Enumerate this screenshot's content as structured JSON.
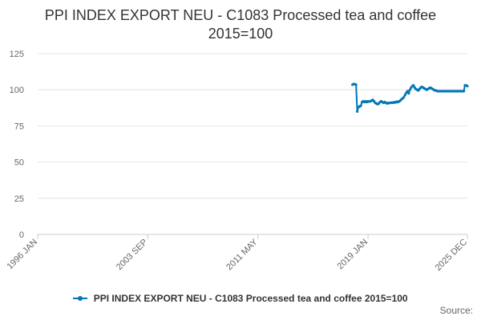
{
  "chart_data": {
    "type": "line",
    "title": "PPI INDEX EXPORT NEU - C1083 Processed tea and coffee",
    "subtitle": "2015=100",
    "xlabel": "",
    "ylabel": "",
    "ylim": [
      0,
      125
    ],
    "y_ticks": [
      "0",
      "25",
      "50",
      "75",
      "100",
      "125"
    ],
    "x_range": [
      "1996-01",
      "2025-12"
    ],
    "x_tick_labels": [
      "1996 JAN",
      "2003 SEP",
      "2011 MAY",
      "2019 JAN",
      "2025 DEC"
    ],
    "x_tick_dates": [
      "1996-01",
      "2003-09",
      "2011-05",
      "2019-01",
      "2025-12"
    ],
    "grid": "horizontal",
    "legend_position": "bottom",
    "series": [
      {
        "name": "PPI INDEX EXPORT NEU - C1083 Processed tea and coffee 2015=100",
        "color": "#0077b6",
        "points": [
          [
            "2017-12",
            103.5
          ],
          [
            "2018-01",
            104.0
          ],
          [
            "2018-02",
            103.8
          ],
          [
            "2018-03",
            103.5
          ],
          [
            "2018-04",
            85.0
          ],
          [
            "2018-05",
            88.0
          ],
          [
            "2018-06",
            88.5
          ],
          [
            "2018-07",
            89.0
          ],
          [
            "2018-08",
            91.5
          ],
          [
            "2018-09",
            92.0
          ],
          [
            "2018-10",
            91.5
          ],
          [
            "2018-11",
            92.0
          ],
          [
            "2018-12",
            91.5
          ],
          [
            "2019-01",
            92.0
          ],
          [
            "2019-02",
            91.8
          ],
          [
            "2019-03",
            92.0
          ],
          [
            "2019-04",
            92.5
          ],
          [
            "2019-05",
            93.0
          ],
          [
            "2019-06",
            92.0
          ],
          [
            "2019-07",
            91.0
          ],
          [
            "2019-08",
            90.5
          ],
          [
            "2019-09",
            90.0
          ],
          [
            "2019-10",
            90.5
          ],
          [
            "2019-11",
            91.5
          ],
          [
            "2019-12",
            92.0
          ],
          [
            "2020-01",
            91.5
          ],
          [
            "2020-02",
            91.0
          ],
          [
            "2020-03",
            91.5
          ],
          [
            "2020-04",
            91.0
          ],
          [
            "2020-05",
            90.5
          ],
          [
            "2020-06",
            91.0
          ],
          [
            "2020-07",
            90.8
          ],
          [
            "2020-08",
            91.0
          ],
          [
            "2020-09",
            91.2
          ],
          [
            "2020-10",
            91.0
          ],
          [
            "2020-11",
            91.5
          ],
          [
            "2020-12",
            91.2
          ],
          [
            "2021-01",
            91.8
          ],
          [
            "2021-02",
            91.5
          ],
          [
            "2021-03",
            92.0
          ],
          [
            "2021-04",
            92.5
          ],
          [
            "2021-05",
            93.5
          ],
          [
            "2021-06",
            94.0
          ],
          [
            "2021-07",
            95.0
          ],
          [
            "2021-08",
            96.5
          ],
          [
            "2021-09",
            98.0
          ],
          [
            "2021-10",
            99.0
          ],
          [
            "2021-11",
            97.5
          ],
          [
            "2021-12",
            100.0
          ],
          [
            "2022-01",
            101.5
          ],
          [
            "2022-02",
            102.5
          ],
          [
            "2022-03",
            103.0
          ],
          [
            "2022-04",
            101.5
          ],
          [
            "2022-05",
            100.5
          ],
          [
            "2022-06",
            100.0
          ],
          [
            "2022-07",
            99.5
          ],
          [
            "2022-08",
            100.5
          ],
          [
            "2022-09",
            101.5
          ],
          [
            "2022-10",
            102.0
          ],
          [
            "2022-11",
            101.5
          ],
          [
            "2022-12",
            101.0
          ],
          [
            "2023-01",
            100.5
          ],
          [
            "2023-02",
            100.0
          ],
          [
            "2023-03",
            100.5
          ],
          [
            "2023-04",
            101.0
          ],
          [
            "2023-05",
            101.5
          ],
          [
            "2023-06",
            101.0
          ],
          [
            "2023-07",
            100.5
          ],
          [
            "2023-08",
            100.0
          ],
          [
            "2023-09",
            99.5
          ],
          [
            "2023-10",
            99.5
          ],
          [
            "2023-11",
            99.0
          ],
          [
            "2023-12",
            99.0
          ],
          [
            "2024-01",
            99.0
          ],
          [
            "2024-02",
            99.0
          ],
          [
            "2024-03",
            99.0
          ],
          [
            "2024-04",
            99.0
          ],
          [
            "2024-05",
            99.0
          ],
          [
            "2024-06",
            99.0
          ],
          [
            "2024-07",
            99.0
          ],
          [
            "2024-08",
            99.0
          ],
          [
            "2024-09",
            99.0
          ],
          [
            "2024-10",
            99.0
          ],
          [
            "2024-11",
            99.0
          ],
          [
            "2024-12",
            99.0
          ],
          [
            "2025-01",
            99.0
          ],
          [
            "2025-02",
            99.0
          ],
          [
            "2025-03",
            99.0
          ],
          [
            "2025-04",
            99.0
          ],
          [
            "2025-05",
            99.0
          ],
          [
            "2025-06",
            99.0
          ],
          [
            "2025-07",
            99.0
          ],
          [
            "2025-08",
            99.0
          ],
          [
            "2025-09",
            99.0
          ],
          [
            "2025-10",
            103.0
          ],
          [
            "2025-11",
            103.0
          ],
          [
            "2025-12",
            102.5
          ]
        ]
      }
    ]
  },
  "footer": {
    "source_label": "Source:"
  }
}
